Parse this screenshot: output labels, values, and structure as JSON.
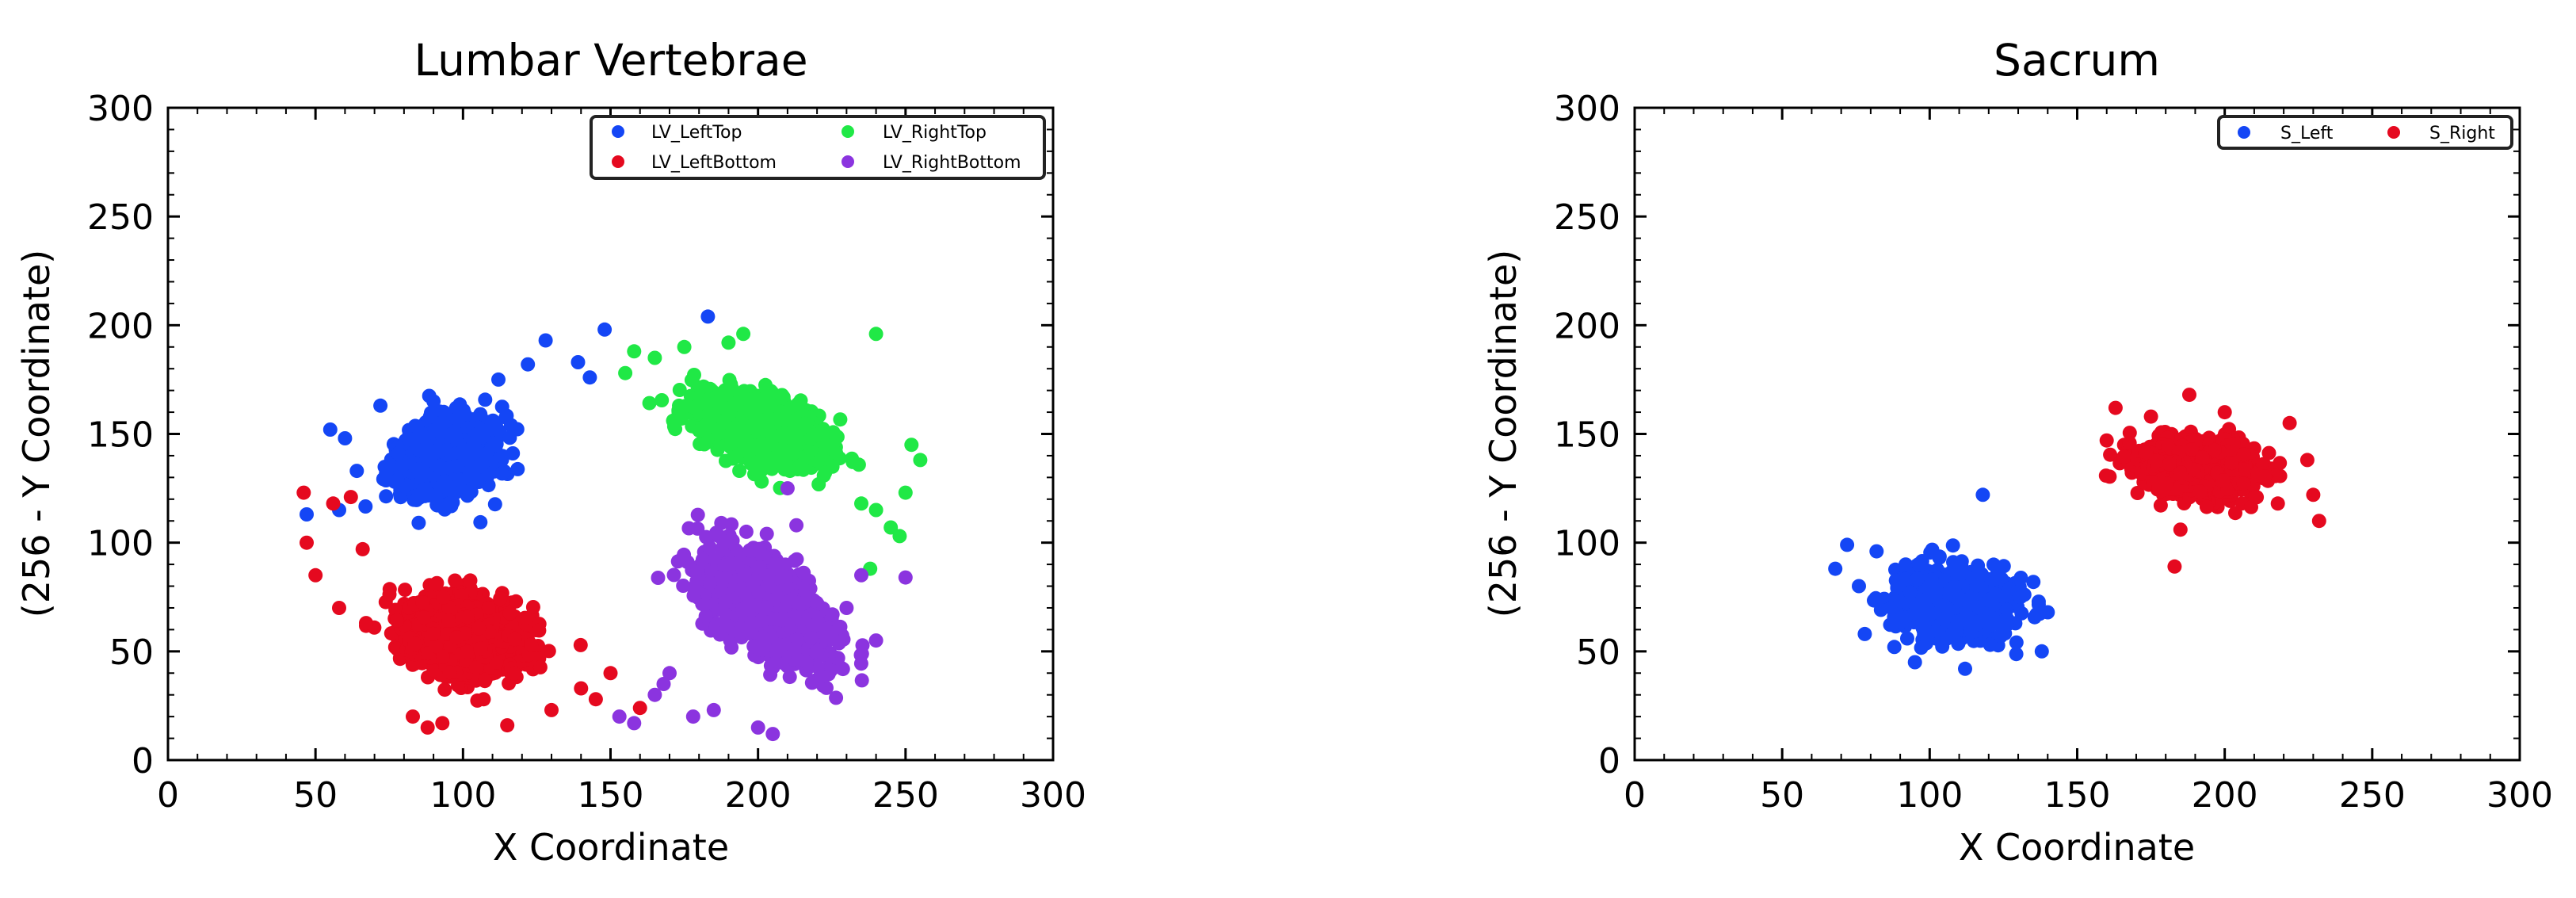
{
  "chart_data": [
    {
      "type": "scatter",
      "title": "Lumbar Vertebrae",
      "xlabel": "X Coordinate",
      "ylabel": "(256 - Y Coordinate)",
      "xlim": [
        0,
        300
      ],
      "ylim": [
        0,
        300
      ],
      "xticks": [
        0,
        50,
        100,
        150,
        200,
        250,
        300
      ],
      "yticks": [
        0,
        50,
        100,
        150,
        200,
        250,
        300
      ],
      "grid": false,
      "legend": "top-right",
      "legend_columns": 2,
      "series": [
        {
          "name": "LV_LeftTop",
          "color": "#1446F5",
          "cluster": {
            "center": [
              95,
              140
            ],
            "spread": [
              9,
              7
            ],
            "angle_deg": 45,
            "count": 1400
          },
          "x": [
            47,
            55,
            60,
            58,
            148,
            183,
            139,
            143,
            128,
            122,
            112,
            90,
            72,
            64
          ],
          "y": [
            113,
            152,
            148,
            115,
            198,
            204,
            183,
            176,
            193,
            182,
            175,
            165,
            163,
            133
          ]
        },
        {
          "name": "LV_LeftBottom",
          "color": "#E5091F",
          "cluster": {
            "center": [
              100,
              58
            ],
            "spread": [
              10,
              8
            ],
            "angle_deg": -33,
            "count": 1400
          },
          "x": [
            46,
            47,
            50,
            56,
            62,
            58,
            83,
            88,
            93,
            107,
            115,
            130,
            140,
            145,
            150,
            160,
            66
          ],
          "y": [
            123,
            100,
            85,
            118,
            121,
            70,
            20,
            15,
            17,
            28,
            16,
            23,
            33,
            28,
            40,
            24,
            97
          ]
        },
        {
          "name": "LV_RightTop",
          "color": "#20E846",
          "cluster": {
            "center": [
              202,
              152
            ],
            "spread": [
              11,
              6
            ],
            "angle_deg": -30,
            "count": 1400
          },
          "x": [
            155,
            158,
            165,
            175,
            190,
            195,
            240,
            235,
            245,
            252,
            255,
            250,
            238,
            248,
            240
          ],
          "y": [
            178,
            188,
            185,
            190,
            192,
            196,
            196,
            118,
            107,
            145,
            138,
            123,
            88,
            103,
            115
          ]
        },
        {
          "name": "LV_RightBottom",
          "color": "#8B34DF",
          "cluster": {
            "center": [
              202,
              72
            ],
            "spread": [
              7,
              14
            ],
            "angle_deg": 35,
            "count": 1400
          },
          "x": [
            153,
            158,
            165,
            168,
            170,
            178,
            185,
            200,
            205,
            235,
            240,
            230,
            220,
            210,
            250,
            213
          ],
          "y": [
            20,
            17,
            30,
            35,
            40,
            20,
            23,
            15,
            12,
            85,
            55,
            70,
            50,
            125,
            84,
            108
          ]
        }
      ]
    },
    {
      "type": "scatter",
      "title": "Sacrum",
      "xlabel": "X Coordinate",
      "ylabel": "(256 - Y Coordinate)",
      "xlim": [
        0,
        300
      ],
      "ylim": [
        0,
        300
      ],
      "xticks": [
        0,
        50,
        100,
        150,
        200,
        250,
        300
      ],
      "yticks": [
        0,
        50,
        100,
        150,
        200,
        250,
        300
      ],
      "grid": false,
      "legend": "top-right",
      "legend_columns": 2,
      "series": [
        {
          "name": "S_Left",
          "color": "#1446F5",
          "cluster": {
            "center": [
              108,
              72
            ],
            "spread": [
              9,
              7
            ],
            "angle_deg": -8,
            "count": 1200
          },
          "x": [
            68,
            72,
            76,
            78,
            82,
            118,
            140,
            138,
            112,
            88,
            95
          ],
          "y": [
            88,
            99,
            80,
            58,
            96,
            122,
            68,
            50,
            42,
            52,
            45
          ]
        },
        {
          "name": "S_Right",
          "color": "#E5091F",
          "cluster": {
            "center": [
              190,
              135
            ],
            "spread": [
              9,
              6
            ],
            "angle_deg": -10,
            "count": 1200
          },
          "x": [
            160,
            163,
            183,
            188,
            222,
            228,
            230,
            232,
            218,
            185,
            175,
            200
          ],
          "y": [
            147,
            162,
            89,
            168,
            155,
            138,
            122,
            110,
            118,
            106,
            158,
            160
          ]
        }
      ]
    }
  ]
}
